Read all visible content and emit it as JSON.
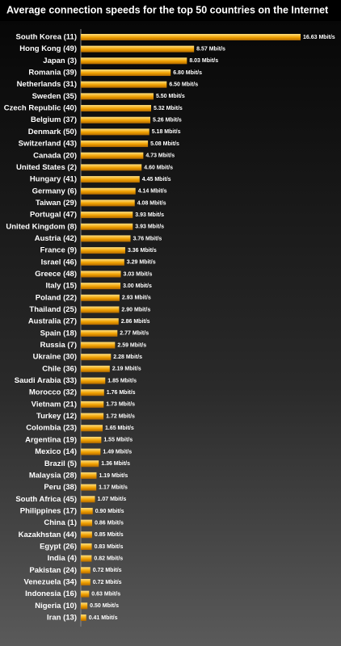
{
  "chart_data": {
    "type": "bar",
    "orientation": "horizontal",
    "title": "Average connection speeds for the top 50 countries on the Internet",
    "color": "#f0a000",
    "categories": [
      "South Korea (11)",
      "Hong Kong (49)",
      "Japan (3)",
      "Romania (39)",
      "Netherlands (31)",
      "Sweden (35)",
      "Czech Republic (40)",
      "Belgium (37)",
      "Denmark (50)",
      "Switzerland (43)",
      "Canada (20)",
      "United States (2)",
      "Hungary (41)",
      "Germany (6)",
      "Taiwan (29)",
      "Portugal (47)",
      "United Kingdom (8)",
      "Austria (42)",
      "France (9)",
      "Israel (46)",
      "Greece (48)",
      "Italy (15)",
      "Poland (22)",
      "Thailand (25)",
      "Australia (27)",
      "Spain (18)",
      "Russia (7)",
      "Ukraine (30)",
      "Chile (36)",
      "Saudi Arabia (33)",
      "Morocco (32)",
      "Vietnam (21)",
      "Turkey (12)",
      "Colombia (23)",
      "Argentina (19)",
      "Mexico (14)",
      "Brazil (5)",
      "Malaysia (28)",
      "Peru (38)",
      "South Africa (45)",
      "Philippines (17)",
      "China (1)",
      "Kazakhstan (44)",
      "Egypt (26)",
      "India (4)",
      "Pakistan (24)",
      "Venezuela (34)",
      "Indonesia (16)",
      "Nigeria (10)",
      "Iran (13)"
    ],
    "values": [
      16.63,
      8.57,
      8.03,
      6.8,
      6.5,
      5.5,
      5.32,
      5.26,
      5.18,
      5.08,
      4.73,
      4.6,
      4.45,
      4.14,
      4.08,
      3.93,
      3.93,
      3.76,
      3.36,
      3.29,
      3.03,
      3.0,
      2.93,
      2.9,
      2.86,
      2.77,
      2.59,
      2.28,
      2.19,
      1.85,
      1.76,
      1.73,
      1.72,
      1.65,
      1.55,
      1.49,
      1.36,
      1.19,
      1.17,
      1.07,
      0.9,
      0.86,
      0.85,
      0.83,
      0.82,
      0.72,
      0.72,
      0.63,
      0.5,
      0.41
    ],
    "value_labels": [
      "16.63 Mbit/s",
      "8.57 Mbit/s",
      "8.03 Mbit/s",
      "6.80 Mbit/s",
      "6.50 Mbit/s",
      "5.50 Mbit/s",
      "5.32 Mbit/s",
      "5.26 Mbit/s",
      "5.18 Mbit/s",
      "5.08 Mbit/s",
      "4.73 Mbit/s",
      "4.60 Mbit/s",
      "4.45 Mbit/s",
      "4.14 Mbit/s",
      "4.08 Mbit/s",
      "3.93 Mbit/s",
      "3.93 Mbit/s",
      "3.76 Mbit/s",
      "3.36 Mbit/s",
      "3.29 Mbit/s",
      "3.03 Mbit/s",
      "3.00 Mbit/s",
      "2.93 Mbit/s",
      "2.90 Mbit/s",
      "2.86 Mbit/s",
      "2.77 Mbit/s",
      "2.59 Mbit/s",
      "2.28 Mbit/s",
      "2.19 Mbit/s",
      "1.85 Mbit/s",
      "1.76 Mbit/s",
      "1.73 Mbit/s",
      "1.72 Mbit/s",
      "1.65 Mbit/s",
      "1.55 Mbit/s",
      "1.49 Mbit/s",
      "1.36 Mbit/s",
      "1.19 Mbit/s",
      "1.17 Mbit/s",
      "1.07 Mbit/s",
      "0.90 Mbit/s",
      "0.86 Mbit/s",
      "0.85 Mbit/s",
      "0.83 Mbit/s",
      "0.82 Mbit/s",
      "0.72 Mbit/s",
      "0.72 Mbit/s",
      "0.63 Mbit/s",
      "0.50 Mbit/s",
      "0.41 Mbit/s"
    ]
  }
}
